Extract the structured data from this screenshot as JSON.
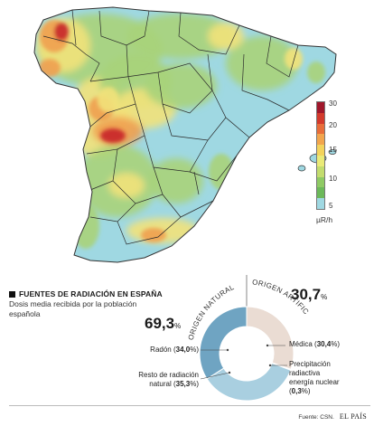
{
  "map": {
    "colors": {
      "sea": "#ffffff",
      "low": "#9fd8e2",
      "mid_low": "#a8d37a",
      "mid": "#f2e27a",
      "mid_high": "#f0a050",
      "high": "#c8262a"
    },
    "legend": {
      "ticks": [
        "30",
        "20",
        "15",
        "10",
        "5"
      ],
      "unit": "µR/h",
      "colors": [
        "#a0172b",
        "#d33a2c",
        "#e86d3a",
        "#f2a54d",
        "#f3d35c",
        "#eaea78",
        "#c3dc6e",
        "#8fca64",
        "#6cb95a",
        "#9fd8e2"
      ]
    }
  },
  "section": {
    "title": "FUENTES DE RADIACIÓN EN ESPAÑA",
    "subtitle_line1": "Dosis media recibida por la población",
    "subtitle_line2": "española"
  },
  "chart_data": {
    "type": "pie",
    "groups": [
      {
        "label": "ORIGEN NATURAL",
        "value": 69.3
      },
      {
        "label": "ORIGEN ARTIFICIAL",
        "value": 30.7
      }
    ],
    "slices": [
      {
        "name": "Médica",
        "value": 30.4,
        "color": "#eadcd3"
      },
      {
        "name": "Precipitación radiactiva energía nuclear",
        "value": 0.3,
        "color": "#e87f6f"
      },
      {
        "name": "Resto de radiación natural",
        "value": 35.3,
        "color": "#a9cfe0"
      },
      {
        "name": "Radón",
        "value": 34.0,
        "color": "#6fa4c2"
      }
    ],
    "natural_total": "69,3",
    "artificial_total": "30,7",
    "percent_sign": "%",
    "labels": {
      "radon_text": "Radón (",
      "radon_value": "34,0",
      "radon_close": "%)",
      "resto_line1": "Resto de radiación",
      "resto_line2": "natural (",
      "resto_value": "35,3",
      "resto_close": "%)",
      "medica_text": "Médica (",
      "medica_value": "30,4",
      "medica_close": "%)",
      "precip_line1": "Precipitación",
      "precip_line2": "radiactiva",
      "precip_line3": "energía nuclear",
      "precip_open": "(",
      "precip_value": "0,3",
      "precip_close": "%)"
    }
  },
  "footer": {
    "source": "Fuente: CSN.",
    "brand": "EL PAÍS"
  }
}
